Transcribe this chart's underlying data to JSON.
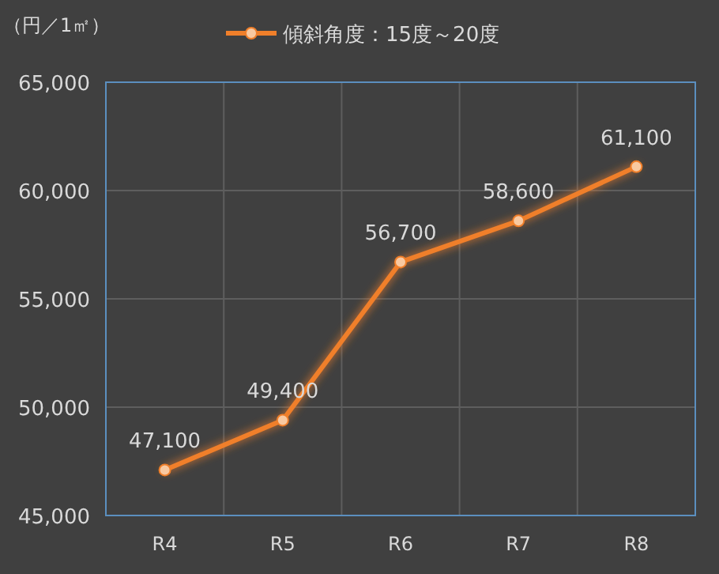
{
  "chart_data": {
    "type": "line",
    "ylabel": "（円／1㎡）",
    "categories": [
      "R4",
      "R5",
      "R6",
      "R7",
      "R8"
    ],
    "series": [
      {
        "name": "傾斜角度：15度～20度",
        "color": "#f07f2a",
        "values": [
          47100,
          49400,
          56700,
          58600,
          61100
        ],
        "value_labels": [
          "47,100",
          "49,400",
          "56,700",
          "58,600",
          "61,100"
        ]
      }
    ],
    "ylim": [
      45000,
      65000
    ],
    "yticks": [
      {
        "value": 45000,
        "label": "45,000"
      },
      {
        "value": 50000,
        "label": "50,000"
      },
      {
        "value": 55000,
        "label": "55,000"
      },
      {
        "value": 60000,
        "label": "60,000"
      },
      {
        "value": 65000,
        "label": "65,000"
      }
    ],
    "grid": true,
    "legend": "top",
    "marker": "circle",
    "line_style": "solid"
  }
}
